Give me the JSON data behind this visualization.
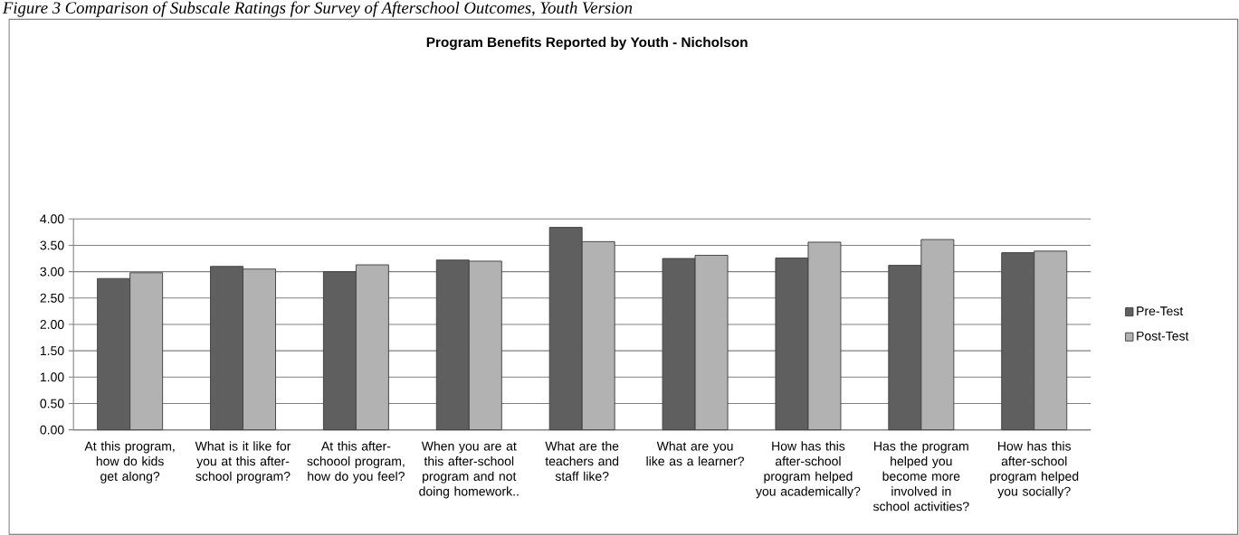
{
  "chart_data": {
    "type": "bar",
    "title": "Program Benefits Reported by Youth - Nicholson",
    "annotations": [
      "Figure 3 Comparison of Subscale Ratings for Survey of Afterschool Outcomes, Youth Version"
    ],
    "categories": [
      "At this program, how do kids get along?",
      "What is it like for you at this after-school program?",
      "At this after-schoool program, how do you feel?",
      "When you are at this after-school program and not doing homework..",
      "What are the teachers and staff like?",
      "What are you like as a learner?",
      "How has this after-school program helped you academically?",
      "Has the program helped you become more involved in school activities?",
      "How has this after-school program helped you socially?"
    ],
    "series": [
      {
        "name": "Pre-Test",
        "color": "#5f5f5f",
        "values": [
          2.87,
          3.1,
          3.0,
          3.22,
          3.84,
          3.25,
          3.26,
          3.12,
          3.36
        ]
      },
      {
        "name": "Post-Test",
        "color": "#b2b2b2",
        "values": [
          2.98,
          3.05,
          3.13,
          3.2,
          3.57,
          3.31,
          3.56,
          3.61,
          3.39
        ]
      }
    ],
    "ylim": [
      0,
      4
    ],
    "yticks": [
      {
        "value": 0,
        "label": "0.00"
      },
      {
        "value": 0.5,
        "label": "0.50"
      },
      {
        "value": 1,
        "label": "1.00"
      },
      {
        "value": 1.5,
        "label": "1.50"
      },
      {
        "value": 2,
        "label": "2.00"
      },
      {
        "value": 2.5,
        "label": "2.50"
      },
      {
        "value": 3,
        "label": "3.00"
      },
      {
        "value": 3.5,
        "label": "3.50"
      },
      {
        "value": 4,
        "label": "4.00"
      }
    ],
    "grid": "y",
    "legend": "right"
  }
}
